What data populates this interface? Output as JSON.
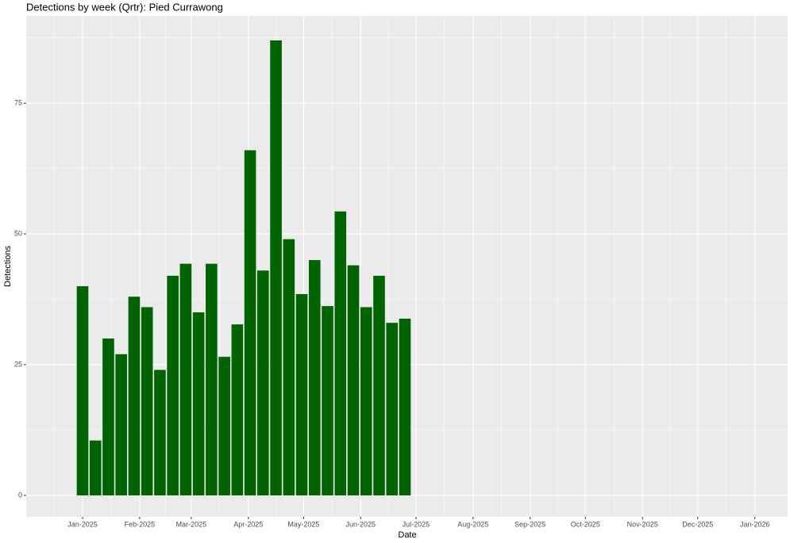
{
  "chart_data": {
    "type": "bar",
    "title": "Detections by week (Qrtr): Pied Currawong",
    "x_label": "Date",
    "y_label": "Detections",
    "x": [
      0,
      7,
      14,
      21,
      28,
      35,
      42,
      49,
      56,
      63,
      70,
      77,
      84,
      91,
      98,
      105,
      112,
      119,
      126,
      133,
      140,
      147,
      154,
      161,
      168,
      175
    ],
    "values": [
      40,
      10.5,
      30,
      27,
      38,
      36,
      24,
      42,
      44.3,
      35,
      44.3,
      26.5,
      32.7,
      66,
      43,
      87,
      49,
      38.5,
      45,
      36.2,
      54.3,
      44,
      36,
      42,
      33,
      33.8
    ],
    "color": "#006400",
    "xlim": [
      -30.6,
      382.8
    ],
    "xticks": [
      {
        "value": 0,
        "label": "Jan-2025"
      },
      {
        "value": 31,
        "label": "Feb-2025"
      },
      {
        "value": 59,
        "label": "Mar-2025"
      },
      {
        "value": 90,
        "label": "Apr-2025"
      },
      {
        "value": 120,
        "label": "May-2025"
      },
      {
        "value": 151,
        "label": "Jun-2025"
      },
      {
        "value": 181,
        "label": "Jul-2025"
      },
      {
        "value": 212,
        "label": "Aug-2025"
      },
      {
        "value": 243,
        "label": "Sep-2025"
      },
      {
        "value": 273,
        "label": "Oct-2025"
      },
      {
        "value": 304,
        "label": "Nov-2025"
      },
      {
        "value": 334,
        "label": "Dec-2025"
      },
      {
        "value": 365,
        "label": "Jan-2026"
      }
    ],
    "ylim": [
      -4.1,
      91.7
    ],
    "yticks": [
      0,
      25,
      50,
      75
    ],
    "grid": true
  }
}
